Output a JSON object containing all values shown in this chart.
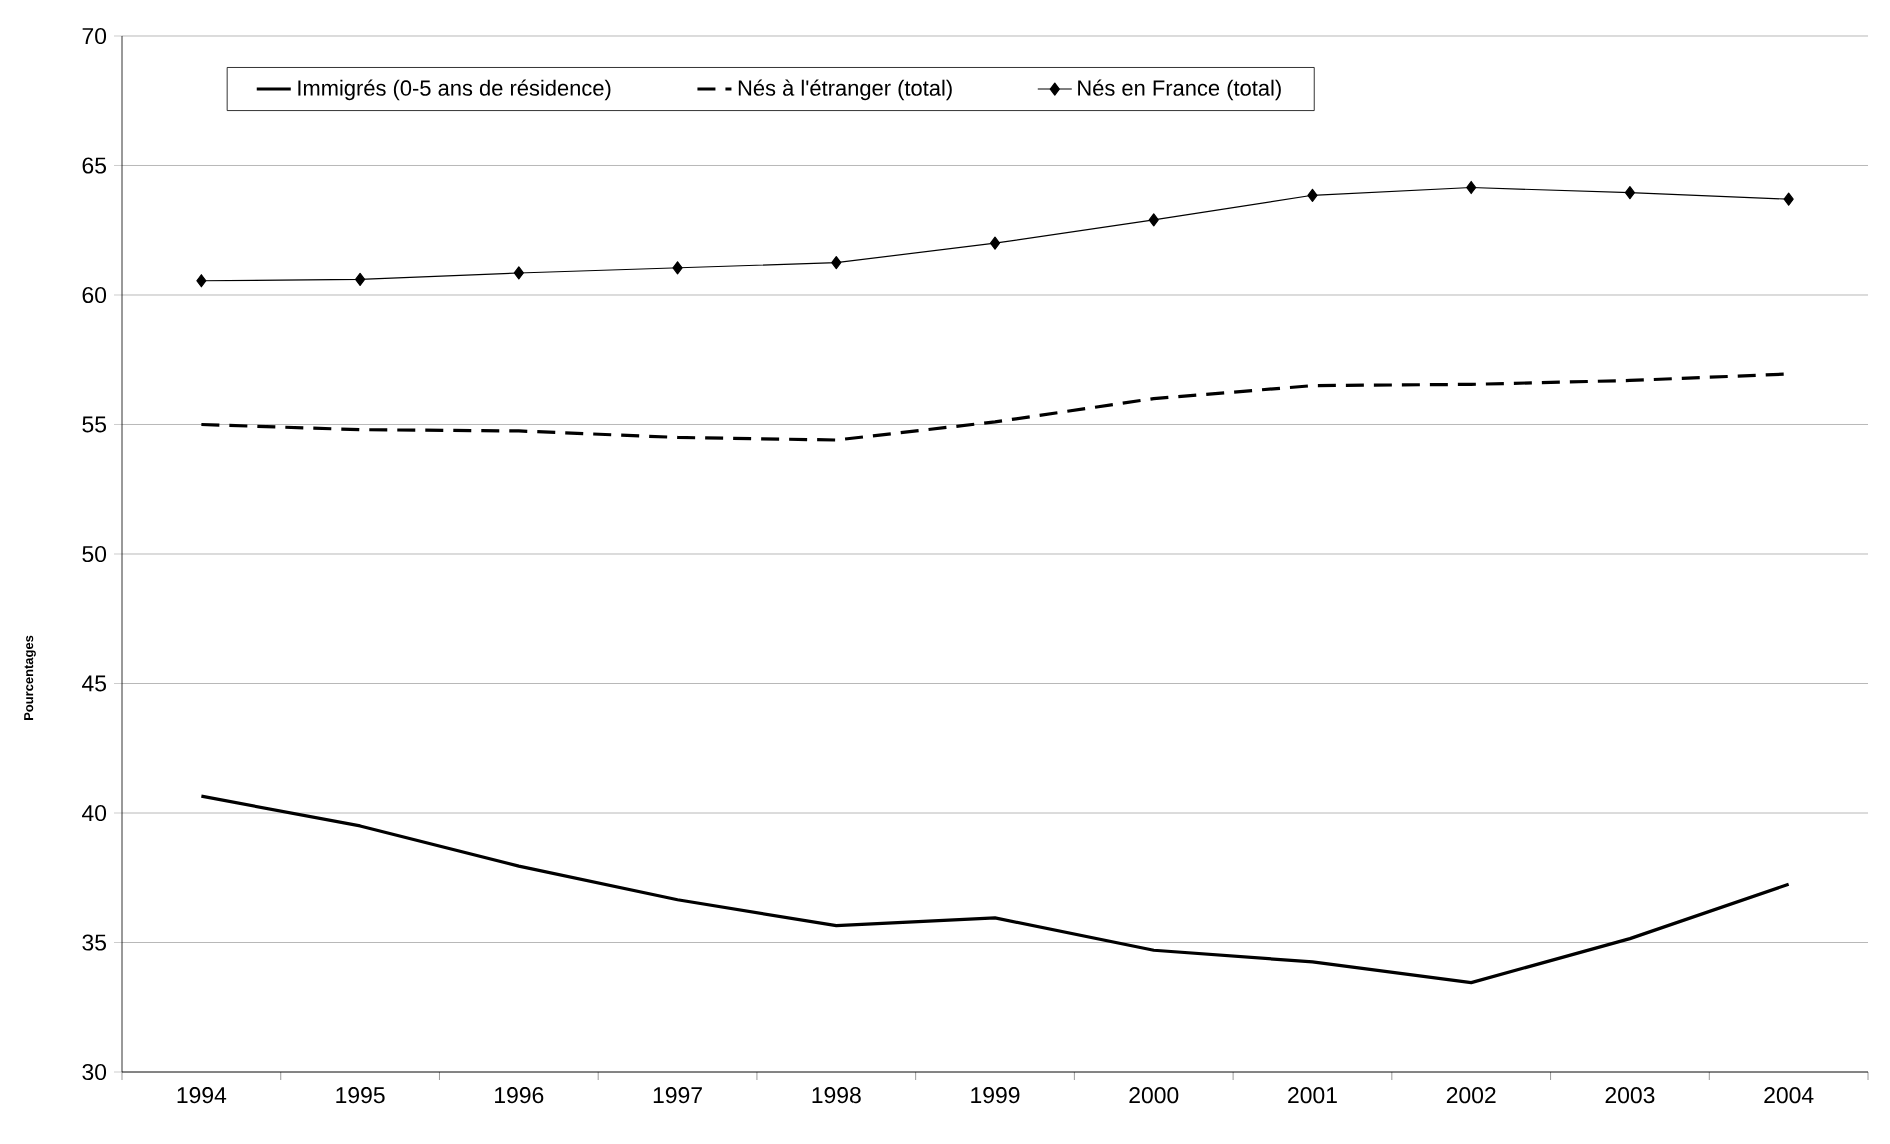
{
  "chart_data": {
    "type": "line",
    "ylabel": "Pourcentages",
    "categories": [
      "1994",
      "1995",
      "1996",
      "1997",
      "1998",
      "1999",
      "2000",
      "2001",
      "2002",
      "2003",
      "2004"
    ],
    "series": [
      {
        "name": "Immigrés (0-5 ans de résidence)",
        "color": "#000000",
        "line_style": "solid",
        "marker": "none",
        "values": [
          40.65,
          39.5,
          37.95,
          36.65,
          35.65,
          35.95,
          34.7,
          34.25,
          33.45,
          35.15,
          37.25
        ]
      },
      {
        "name": "Nés à l'étranger (total)",
        "color": "#000000",
        "line_style": "dashed",
        "marker": "none",
        "values": [
          55.0,
          54.8,
          54.75,
          54.5,
          54.4,
          55.1,
          56.0,
          56.5,
          56.55,
          56.7,
          56.95
        ]
      },
      {
        "name": "Nés en France (total)",
        "color": "#000000",
        "line_style": "solid",
        "marker": "diamond",
        "values": [
          60.55,
          60.6,
          60.85,
          61.05,
          61.25,
          62.0,
          62.9,
          63.85,
          64.15,
          63.95,
          63.7
        ]
      }
    ],
    "ylim": [
      30,
      70
    ],
    "yticks": [
      30,
      35,
      40,
      45,
      50,
      55,
      60,
      65,
      70
    ],
    "grid": "y",
    "legend": "top"
  }
}
